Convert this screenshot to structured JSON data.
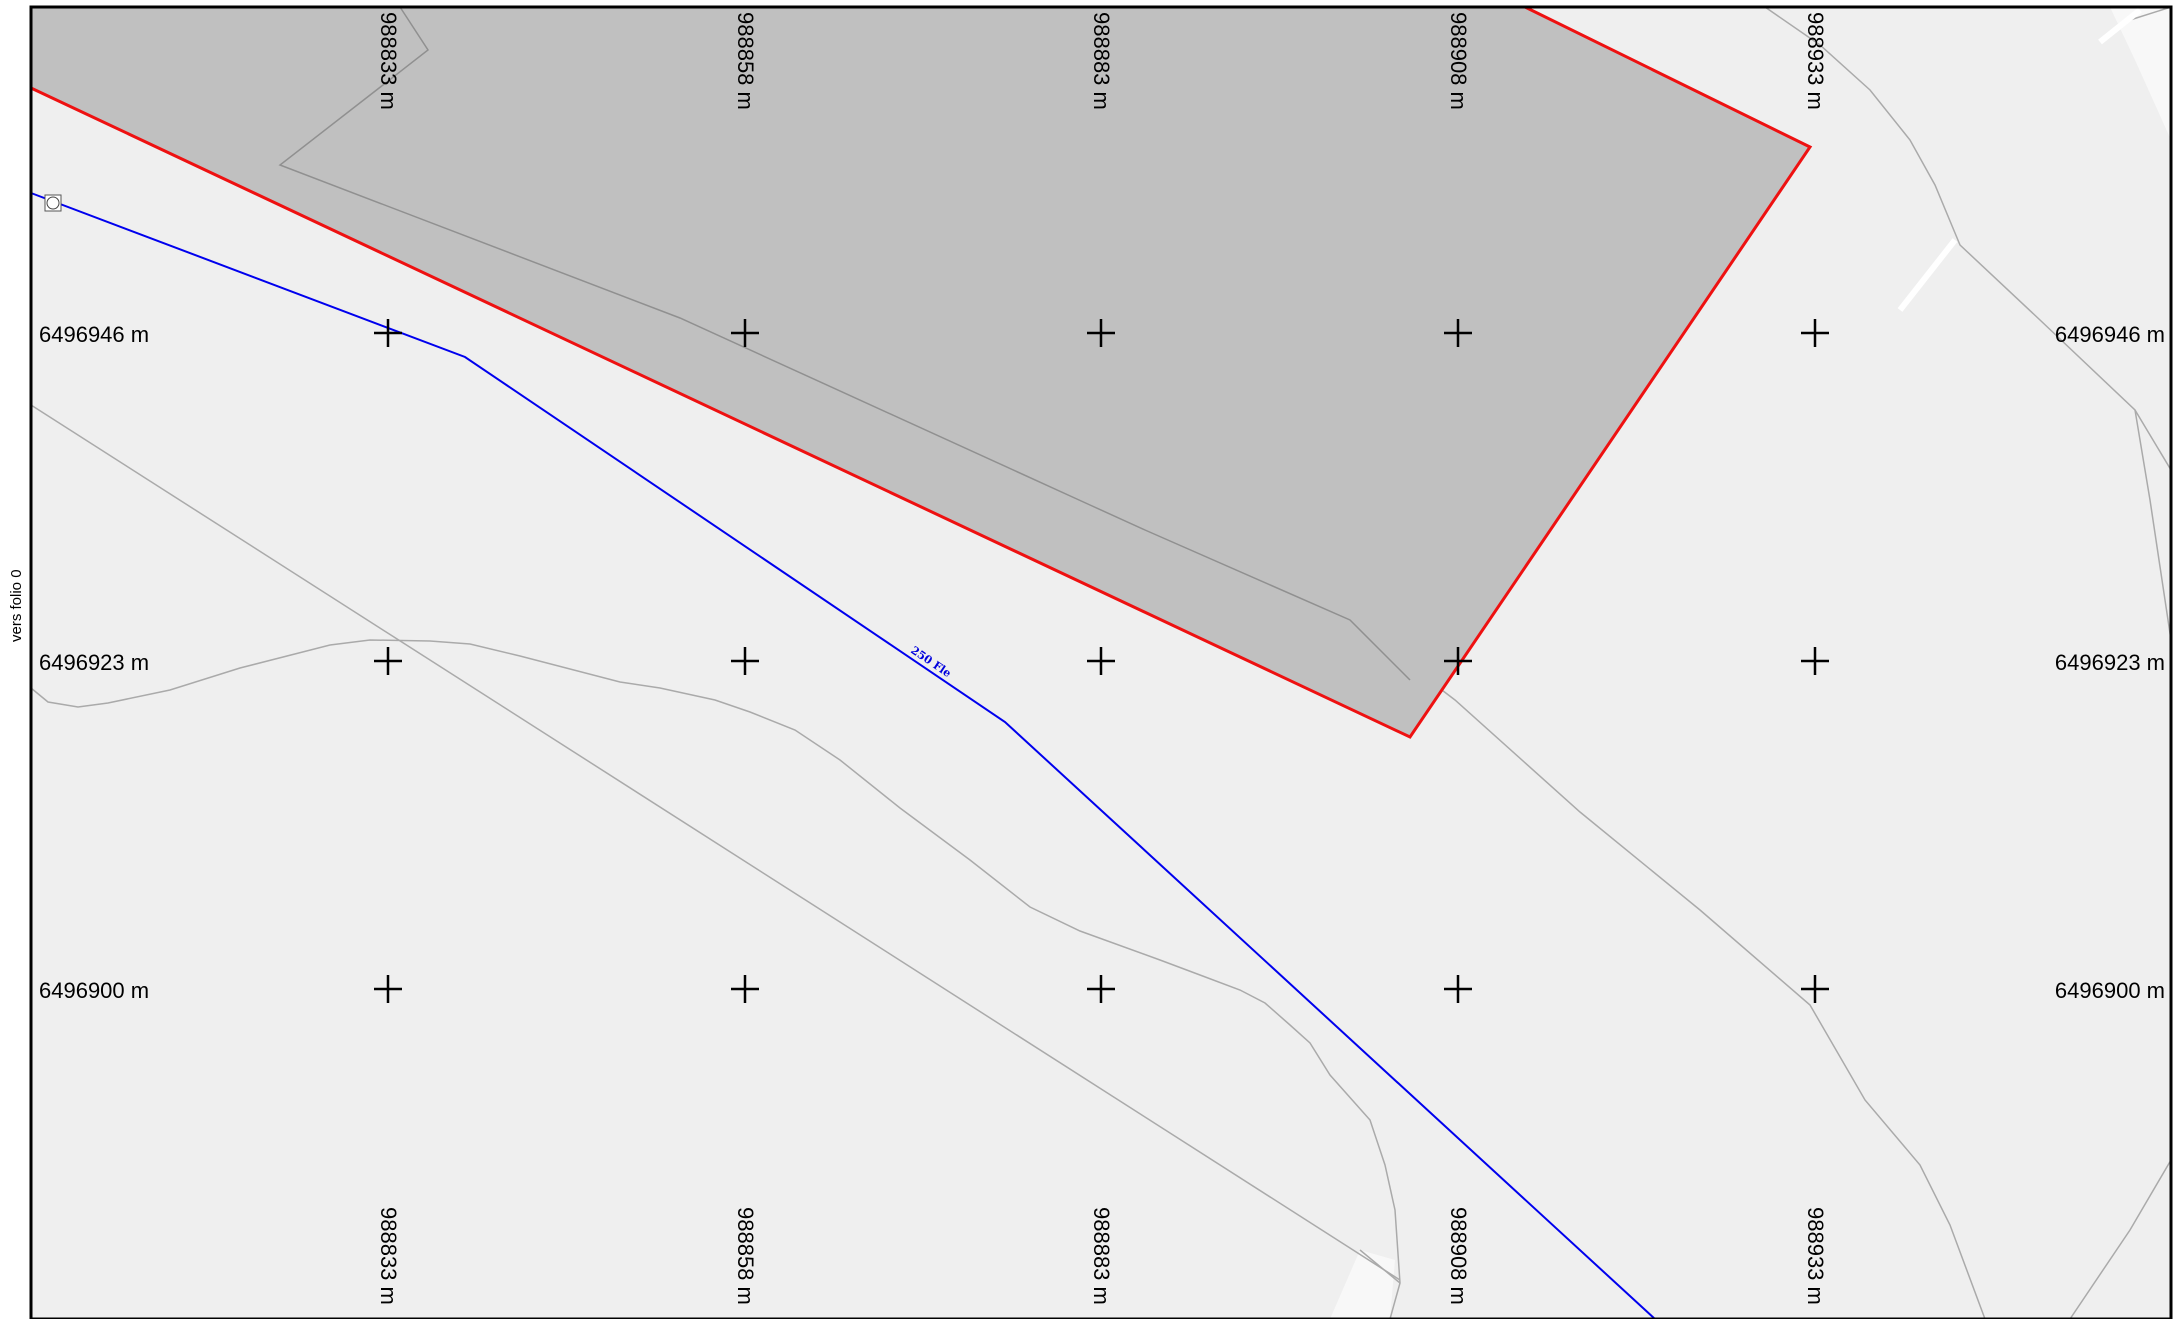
{
  "map": {
    "side_label": "vers folio 0",
    "line_label": "250 Fle",
    "eastings": [
      "988833 m",
      "988858 m",
      "988883 m",
      "988908 m",
      "988933 m"
    ],
    "northings": [
      "6496946 m",
      "6496923 m",
      "6496900 m"
    ],
    "colors": {
      "background": "#efefef",
      "parcel_fill": "#c0c0c0",
      "parcel_outline": "#ee1111",
      "network_line": "#0000ee",
      "context_lines": "#aaaaaa",
      "frame": "#000000"
    }
  }
}
